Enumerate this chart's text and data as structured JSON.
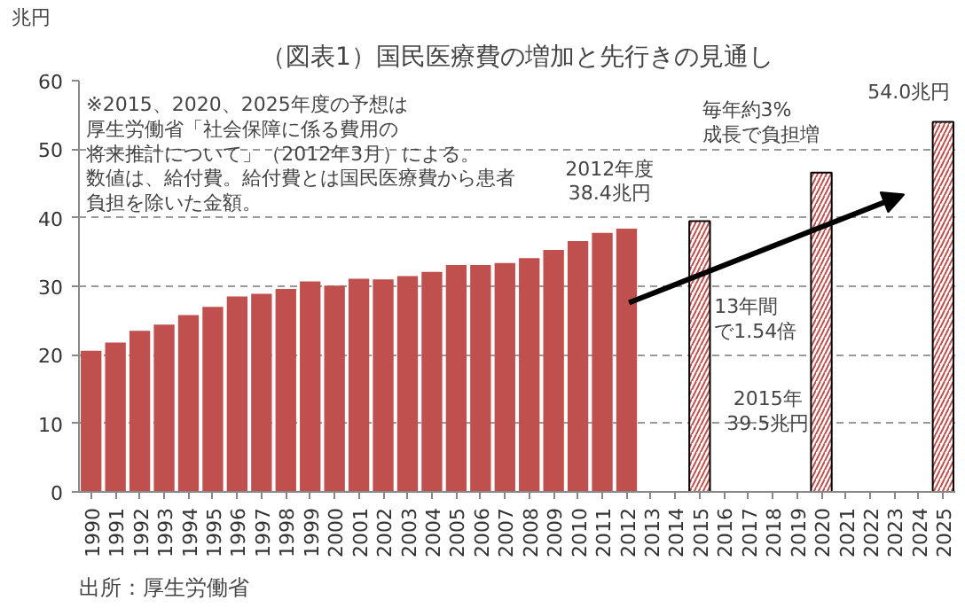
{
  "chart_data": {
    "type": "bar",
    "title": "（図表1）国民医療費の増加と先行きの見通し",
    "ylabel": "兆円",
    "categories": [
      "1990",
      "1991",
      "1992",
      "1993",
      "1994",
      "1995",
      "1996",
      "1997",
      "1998",
      "1999",
      "2000",
      "2001",
      "2002",
      "2003",
      "2004",
      "2005",
      "2006",
      "2007",
      "2008",
      "2009",
      "2010",
      "2011",
      "2012",
      "2013",
      "2014",
      "2015",
      "2016",
      "2017",
      "2018",
      "2019",
      "2020",
      "2021",
      "2022",
      "2023",
      "2024",
      "2025"
    ],
    "series": [
      {
        "color": "#c0504d",
        "values": [
          20.6,
          21.8,
          23.5,
          24.4,
          25.8,
          27.0,
          28.5,
          28.9,
          29.6,
          30.7,
          30.1,
          31.1,
          31.0,
          31.5,
          32.1,
          33.1,
          33.1,
          33.4,
          34.1,
          35.3,
          36.6,
          37.8,
          38.4,
          null,
          null,
          null,
          null,
          null,
          null,
          null,
          null,
          null,
          null,
          null,
          null,
          null
        ]
      },
      {
        "color": "#ffffff",
        "values": [
          null,
          null,
          null,
          null,
          null,
          null,
          null,
          null,
          null,
          null,
          null,
          null,
          null,
          null,
          null,
          null,
          null,
          null,
          null,
          null,
          null,
          null,
          null,
          null,
          null,
          39.5,
          null,
          null,
          null,
          null,
          46.6,
          null,
          null,
          null,
          null,
          54.0
        ]
      }
    ],
    "ylim": [
      0,
      60
    ],
    "yticks": [
      0,
      10,
      20,
      30,
      40,
      50,
      60
    ],
    "grid": "y",
    "annotations": [
      "※2015、2020、2025年度の予想は",
      "厚生労働省「社会保障に係る費用の",
      "将来推計について」（2012年3月）による。",
      "数値は、給付費。給付費とは国民医療費から患者",
      "負担を除いた金額。",
      "2012年度",
      "38.4兆円",
      "毎年約3%",
      "成長で負担増",
      "54.0兆円",
      "13年間",
      "で1.54倍",
      "2015年",
      "39.5兆円",
      "出所：厚生労働省"
    ]
  }
}
